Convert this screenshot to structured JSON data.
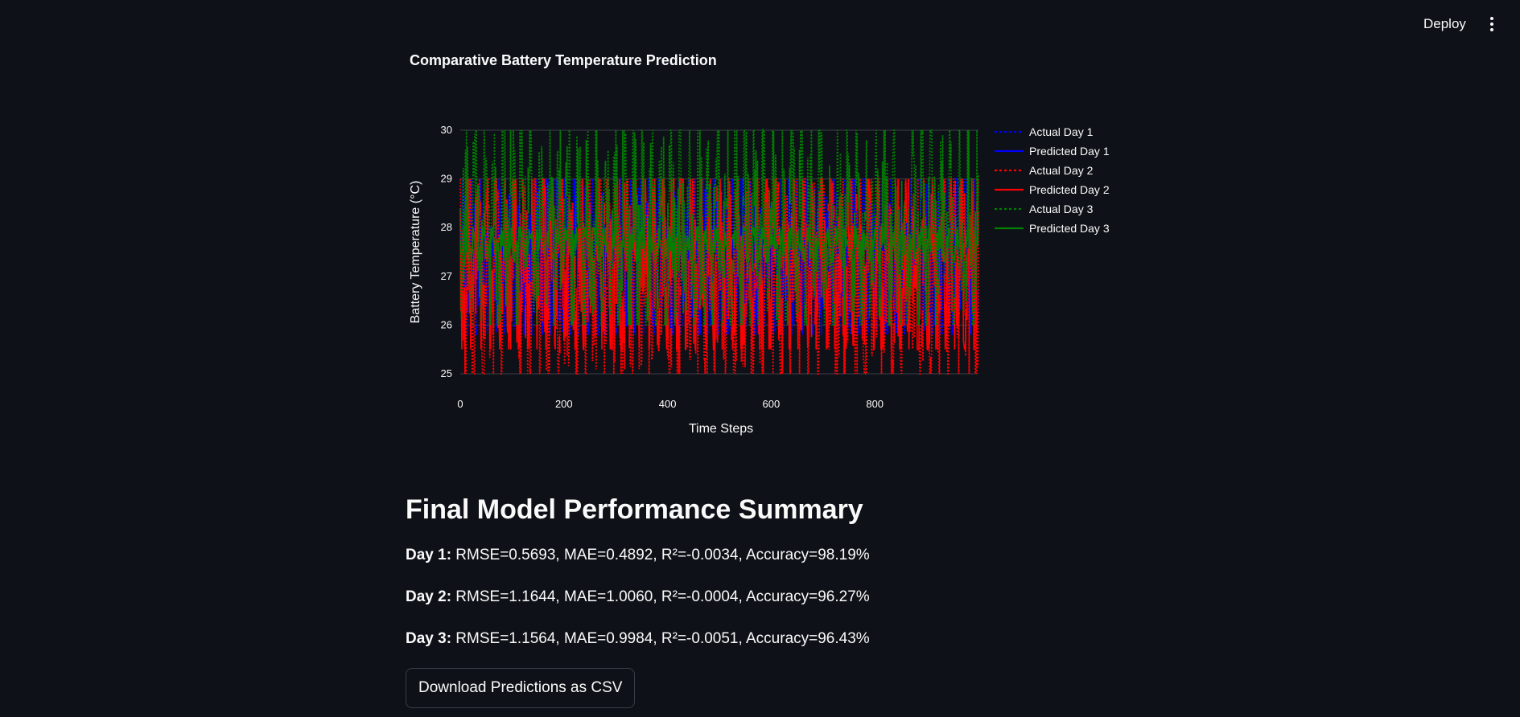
{
  "header": {
    "deploy_label": "Deploy",
    "menu_icon": "vertical-ellipsis-icon"
  },
  "chart": {
    "title": "Comparative Battery Temperature Prediction"
  },
  "chart_data": {
    "type": "line",
    "title": "Comparative Battery Temperature Prediction",
    "xlabel": "Time Steps",
    "ylabel": "Battery Temperature (°C)",
    "xlim": [
      0,
      1000
    ],
    "ylim": [
      25,
      30
    ],
    "x_ticks": [
      0,
      200,
      400,
      600,
      800
    ],
    "y_ticks": [
      25,
      26,
      27,
      28,
      29,
      30
    ],
    "grid": true,
    "legend_position": "right",
    "series": [
      {
        "name": "Actual Day 1",
        "color": "#0000ff",
        "style": "dotted",
        "day": 1,
        "kind": "actual",
        "n_points": 1000,
        "range": [
          25.8,
          29.0
        ]
      },
      {
        "name": "Predicted Day 1",
        "color": "#0000ff",
        "style": "solid",
        "day": 1,
        "kind": "predicted",
        "n_points": 1000,
        "range": [
          27.4,
          28.0
        ]
      },
      {
        "name": "Actual Day 2",
        "color": "#ff0000",
        "style": "dotted",
        "day": 2,
        "kind": "actual",
        "n_points": 1000,
        "range": [
          25.0,
          29.0
        ]
      },
      {
        "name": "Predicted Day 2",
        "color": "#ff0000",
        "style": "solid",
        "day": 2,
        "kind": "predicted",
        "n_points": 1000,
        "range": [
          25.5,
          29.0
        ]
      },
      {
        "name": "Actual Day 3",
        "color": "#008000",
        "style": "dotted",
        "day": 3,
        "kind": "actual",
        "n_points": 1000,
        "range": [
          26.0,
          30.0
        ]
      },
      {
        "name": "Predicted Day 3",
        "color": "#008000",
        "style": "solid",
        "day": 3,
        "kind": "predicted",
        "n_points": 1000,
        "range": [
          27.3,
          28.0
        ]
      }
    ]
  },
  "summary": {
    "heading": "Final Model Performance Summary",
    "rows": [
      {
        "day_label": "Day 1:",
        "metrics": " RMSE=0.5693, MAE=0.4892, R²=-0.0034, Accuracy=98.19%"
      },
      {
        "day_label": "Day 2:",
        "metrics": " RMSE=1.1644, MAE=1.0060, R²=-0.0004, Accuracy=96.27%"
      },
      {
        "day_label": "Day 3:",
        "metrics": " RMSE=1.1564, MAE=0.9984, R²=-0.0051, Accuracy=96.43%"
      }
    ],
    "download_label": "Download Predictions as CSV"
  }
}
